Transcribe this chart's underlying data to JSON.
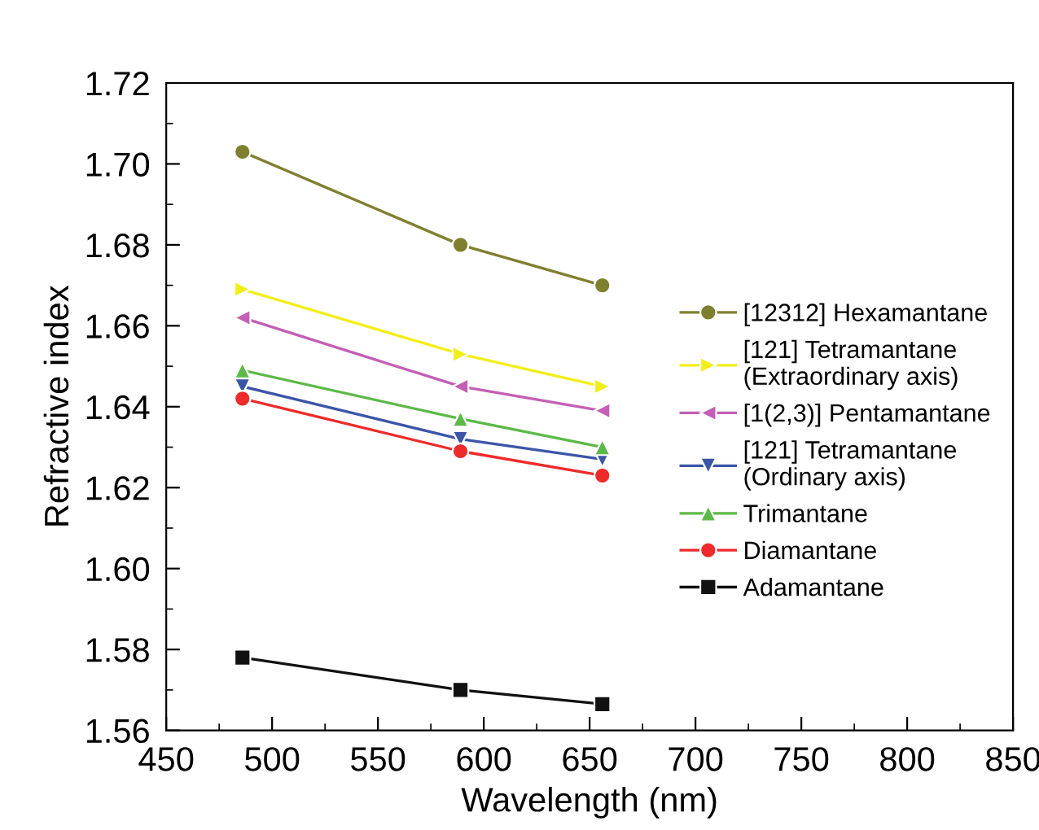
{
  "chart_data": {
    "type": "line",
    "xlabel": "Wavelength (nm)",
    "ylabel": "Refractive index",
    "x": [
      486,
      589,
      656
    ],
    "series": [
      {
        "name": "[12312] Hexamantane",
        "color": "#7f7f30",
        "marker": "circle",
        "values": [
          1.703,
          1.68,
          1.67
        ]
      },
      {
        "name": "[121] Tetramantane\n(Extraordinary axis)",
        "color": "#f2ee1a",
        "marker": "triangle_right",
        "values": [
          1.669,
          1.653,
          1.645
        ]
      },
      {
        "name": "[1(2,3)] Pentamantane",
        "color": "#c45fb5",
        "marker": "triangle_left",
        "values": [
          1.662,
          1.645,
          1.639
        ]
      },
      {
        "name": "[121] Tetramantane\n(Ordinary axis)",
        "color": "#3b55a8",
        "marker": "triangle_down",
        "values": [
          1.645,
          1.632,
          1.627
        ]
      },
      {
        "name": "Trimantane",
        "color": "#5cb947",
        "marker": "triangle",
        "values": [
          1.649,
          1.637,
          1.63
        ]
      },
      {
        "name": "Diamantane",
        "color": "#ee2a2a",
        "marker": "circle",
        "values": [
          1.642,
          1.629,
          1.623
        ]
      },
      {
        "name": "Adamantane",
        "color": "#111111",
        "marker": "square",
        "values": [
          1.578,
          1.57,
          1.5665
        ]
      }
    ],
    "xlim": [
      450,
      850
    ],
    "xticks": [
      450,
      500,
      550,
      600,
      650,
      700,
      750,
      800,
      850
    ],
    "ylim": [
      1.56,
      1.72
    ],
    "yticks": [
      1.56,
      1.58,
      {
        "value": 1.6,
        "label": "1.60"
      },
      1.62,
      1.64,
      1.66,
      1.68,
      {
        "value": 1.7,
        "label": "1.70"
      },
      1.72
    ],
    "grid": false,
    "legend": "right",
    "line_style": "solid"
  }
}
